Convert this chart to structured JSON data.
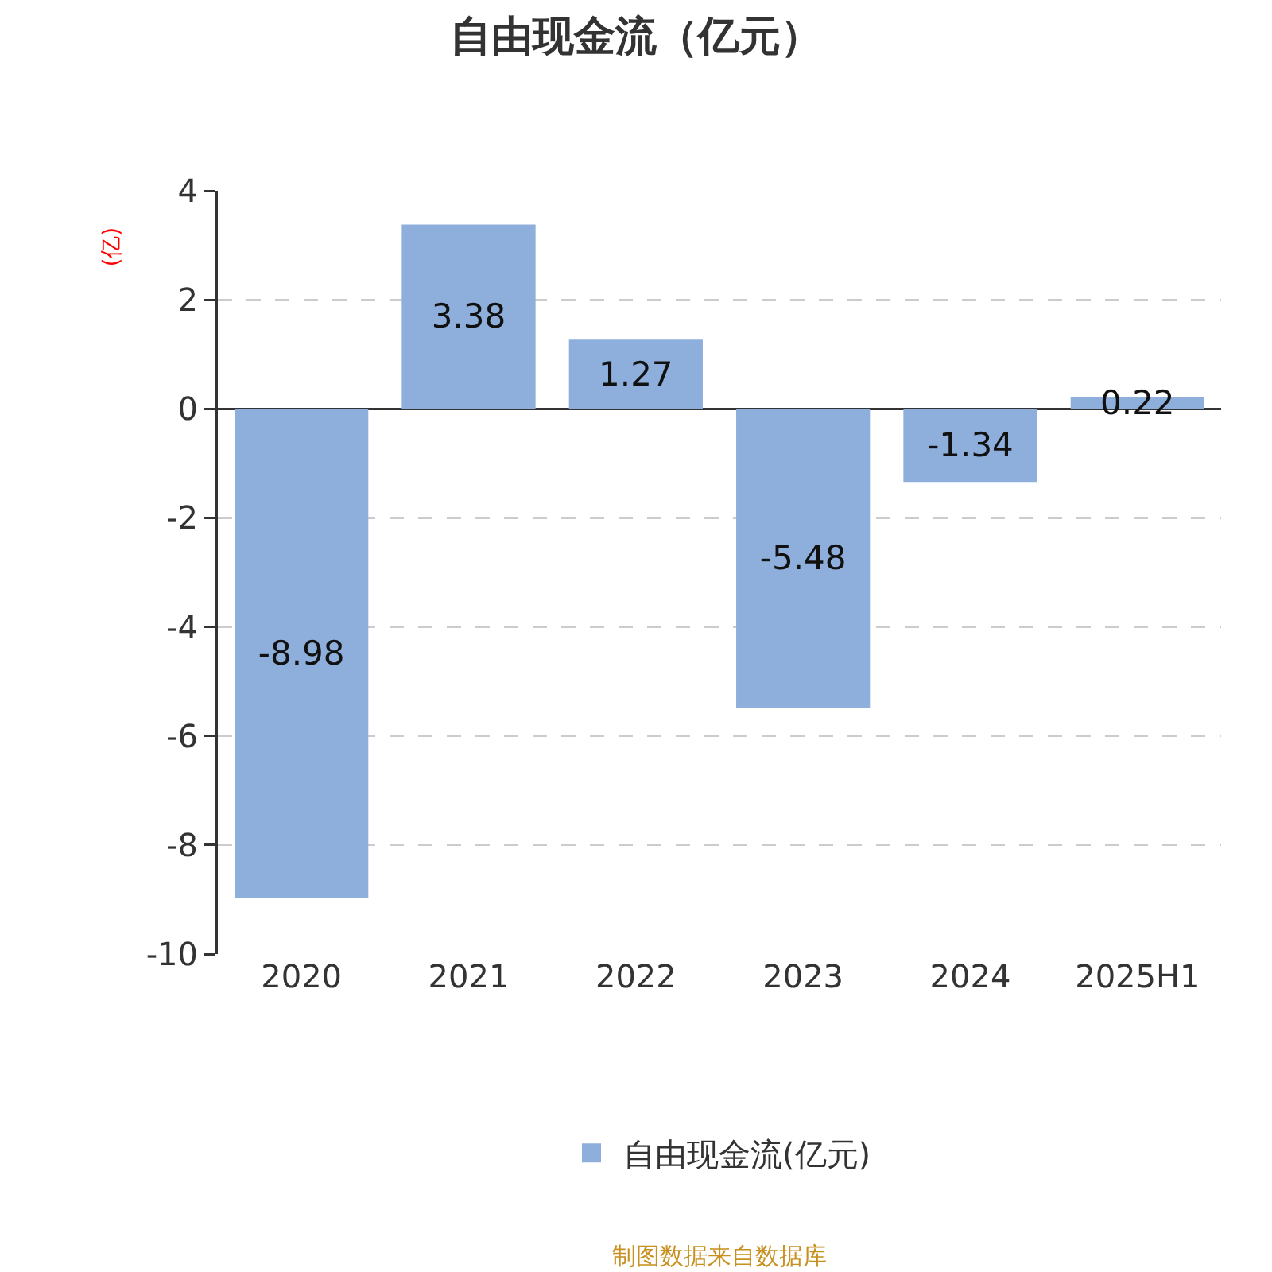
{
  "chart_data": {
    "type": "bar",
    "title": "自由现金流（亿元）",
    "ylabel": "(亿)",
    "categories": [
      "2020",
      "2021",
      "2022",
      "2023",
      "2024",
      "2025H1"
    ],
    "series": [
      {
        "name": "自由现金流(亿元)",
        "color": "#8eaedb",
        "values": [
          -8.98,
          3.38,
          1.27,
          -5.48,
          -1.34,
          0.22
        ]
      }
    ],
    "ylim": [
      -10,
      4
    ],
    "yticks": [
      -10,
      -8,
      -6,
      -4,
      -2,
      0,
      2,
      4
    ],
    "grid": "y",
    "legend": "bottom",
    "data_labels": true,
    "annotations": [
      "制图数据来自数据库"
    ]
  }
}
